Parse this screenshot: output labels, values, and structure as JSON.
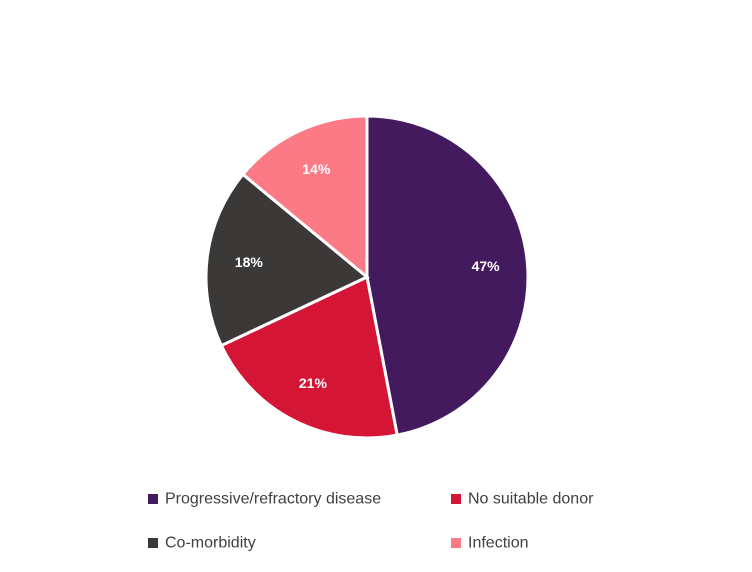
{
  "chart_data": {
    "type": "pie",
    "title": "",
    "legend": "bottom",
    "slices": [
      {
        "label": "Progressive/refractory disease",
        "value": 47,
        "display": "47%",
        "color": "#441a5e"
      },
      {
        "label": "No suitable donor",
        "value": 21,
        "display": "21%",
        "color": "#d41535"
      },
      {
        "label": "Co-morbidity",
        "value": 18,
        "display": "18%",
        "color": "#3a3938"
      },
      {
        "label": "Infection",
        "value": 14,
        "display": "14%",
        "color": "#fb7a85"
      }
    ]
  }
}
